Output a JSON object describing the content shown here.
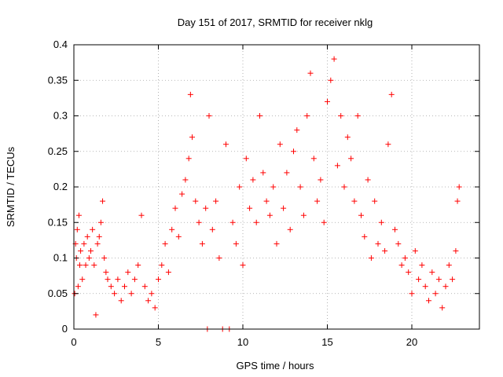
{
  "chart_data": {
    "type": "scatter",
    "title": "Day 151 of 2017, SRMTID for receiver nklg",
    "xlabel": "GPS time / hours",
    "ylabel": "SRMTID / TECUs",
    "xlim": [
      0,
      24
    ],
    "ylim": [
      0,
      0.4
    ],
    "xticks": [
      0,
      5,
      10,
      15,
      20
    ],
    "xtick_labels": [
      "0",
      "5",
      "10",
      "15",
      "20"
    ],
    "yticks": [
      0,
      0.05,
      0.1,
      0.15,
      0.2,
      0.25,
      0.3,
      0.35,
      0.4
    ],
    "ytick_labels": [
      "0",
      "0.05",
      "0.1",
      "0.15",
      "0.2",
      "0.25",
      "0.3",
      "0.35",
      "0.4"
    ],
    "grid": true,
    "marker": "+",
    "color": "#ff0000",
    "series": [
      {
        "name": "nklg",
        "points": [
          [
            0.05,
            0.05
          ],
          [
            0.1,
            0.12
          ],
          [
            0.15,
            0.1
          ],
          [
            0.2,
            0.14
          ],
          [
            0.25,
            0.06
          ],
          [
            0.3,
            0.16
          ],
          [
            0.35,
            0.09
          ],
          [
            0.4,
            0.11
          ],
          [
            0.5,
            0.07
          ],
          [
            0.6,
            0.12
          ],
          [
            0.7,
            0.09
          ],
          [
            0.8,
            0.13
          ],
          [
            0.9,
            0.1
          ],
          [
            1.0,
            0.11
          ],
          [
            1.1,
            0.14
          ],
          [
            1.2,
            0.09
          ],
          [
            1.3,
            0.02
          ],
          [
            1.4,
            0.12
          ],
          [
            1.5,
            0.13
          ],
          [
            1.6,
            0.15
          ],
          [
            1.7,
            0.18
          ],
          [
            1.8,
            0.1
          ],
          [
            1.9,
            0.08
          ],
          [
            2.0,
            0.07
          ],
          [
            2.2,
            0.06
          ],
          [
            2.4,
            0.05
          ],
          [
            2.6,
            0.07
          ],
          [
            2.8,
            0.04
          ],
          [
            3.0,
            0.06
          ],
          [
            3.2,
            0.08
          ],
          [
            3.4,
            0.05
          ],
          [
            3.6,
            0.07
          ],
          [
            3.8,
            0.09
          ],
          [
            4.0,
            0.16
          ],
          [
            4.2,
            0.06
          ],
          [
            4.4,
            0.04
          ],
          [
            4.6,
            0.05
          ],
          [
            4.8,
            0.03
          ],
          [
            5.0,
            0.07
          ],
          [
            5.2,
            0.09
          ],
          [
            5.4,
            0.12
          ],
          [
            5.6,
            0.08
          ],
          [
            5.8,
            0.14
          ],
          [
            6.0,
            0.17
          ],
          [
            6.2,
            0.13
          ],
          [
            6.4,
            0.19
          ],
          [
            6.6,
            0.21
          ],
          [
            6.8,
            0.24
          ],
          [
            6.9,
            0.33
          ],
          [
            7.0,
            0.27
          ],
          [
            7.2,
            0.18
          ],
          [
            7.4,
            0.15
          ],
          [
            7.6,
            0.12
          ],
          [
            7.8,
            0.17
          ],
          [
            7.9,
            0.0
          ],
          [
            8.0,
            0.3
          ],
          [
            8.2,
            0.14
          ],
          [
            8.4,
            0.18
          ],
          [
            8.6,
            0.1
          ],
          [
            8.8,
            0.0
          ],
          [
            9.0,
            0.26
          ],
          [
            9.2,
            0.0
          ],
          [
            9.4,
            0.15
          ],
          [
            9.6,
            0.12
          ],
          [
            9.8,
            0.2
          ],
          [
            10.0,
            0.09
          ],
          [
            10.2,
            0.24
          ],
          [
            10.4,
            0.17
          ],
          [
            10.6,
            0.21
          ],
          [
            10.8,
            0.15
          ],
          [
            11.0,
            0.3
          ],
          [
            11.2,
            0.22
          ],
          [
            11.4,
            0.18
          ],
          [
            11.6,
            0.16
          ],
          [
            11.8,
            0.2
          ],
          [
            12.0,
            0.12
          ],
          [
            12.2,
            0.26
          ],
          [
            12.4,
            0.17
          ],
          [
            12.6,
            0.22
          ],
          [
            12.8,
            0.14
          ],
          [
            13.0,
            0.25
          ],
          [
            13.2,
            0.28
          ],
          [
            13.4,
            0.2
          ],
          [
            13.6,
            0.16
          ],
          [
            13.8,
            0.3
          ],
          [
            14.0,
            0.36
          ],
          [
            14.2,
            0.24
          ],
          [
            14.4,
            0.18
          ],
          [
            14.6,
            0.21
          ],
          [
            14.8,
            0.15
          ],
          [
            15.0,
            0.32
          ],
          [
            15.2,
            0.35
          ],
          [
            15.4,
            0.38
          ],
          [
            15.6,
            0.23
          ],
          [
            15.8,
            0.3
          ],
          [
            16.0,
            0.2
          ],
          [
            16.2,
            0.27
          ],
          [
            16.4,
            0.24
          ],
          [
            16.6,
            0.18
          ],
          [
            16.8,
            0.3
          ],
          [
            17.0,
            0.16
          ],
          [
            17.2,
            0.13
          ],
          [
            17.4,
            0.21
          ],
          [
            17.6,
            0.1
          ],
          [
            17.8,
            0.18
          ],
          [
            18.0,
            0.12
          ],
          [
            18.2,
            0.15
          ],
          [
            18.4,
            0.11
          ],
          [
            18.6,
            0.26
          ],
          [
            18.8,
            0.33
          ],
          [
            19.0,
            0.14
          ],
          [
            19.2,
            0.12
          ],
          [
            19.4,
            0.09
          ],
          [
            19.6,
            0.1
          ],
          [
            19.8,
            0.08
          ],
          [
            20.0,
            0.05
          ],
          [
            20.2,
            0.11
          ],
          [
            20.4,
            0.07
          ],
          [
            20.6,
            0.09
          ],
          [
            20.8,
            0.06
          ],
          [
            21.0,
            0.04
          ],
          [
            21.2,
            0.08
          ],
          [
            21.4,
            0.05
          ],
          [
            21.6,
            0.07
          ],
          [
            21.8,
            0.03
          ],
          [
            22.0,
            0.06
          ],
          [
            22.2,
            0.09
          ],
          [
            22.4,
            0.07
          ],
          [
            22.6,
            0.11
          ],
          [
            22.7,
            0.18
          ],
          [
            22.8,
            0.2
          ]
        ]
      }
    ]
  }
}
